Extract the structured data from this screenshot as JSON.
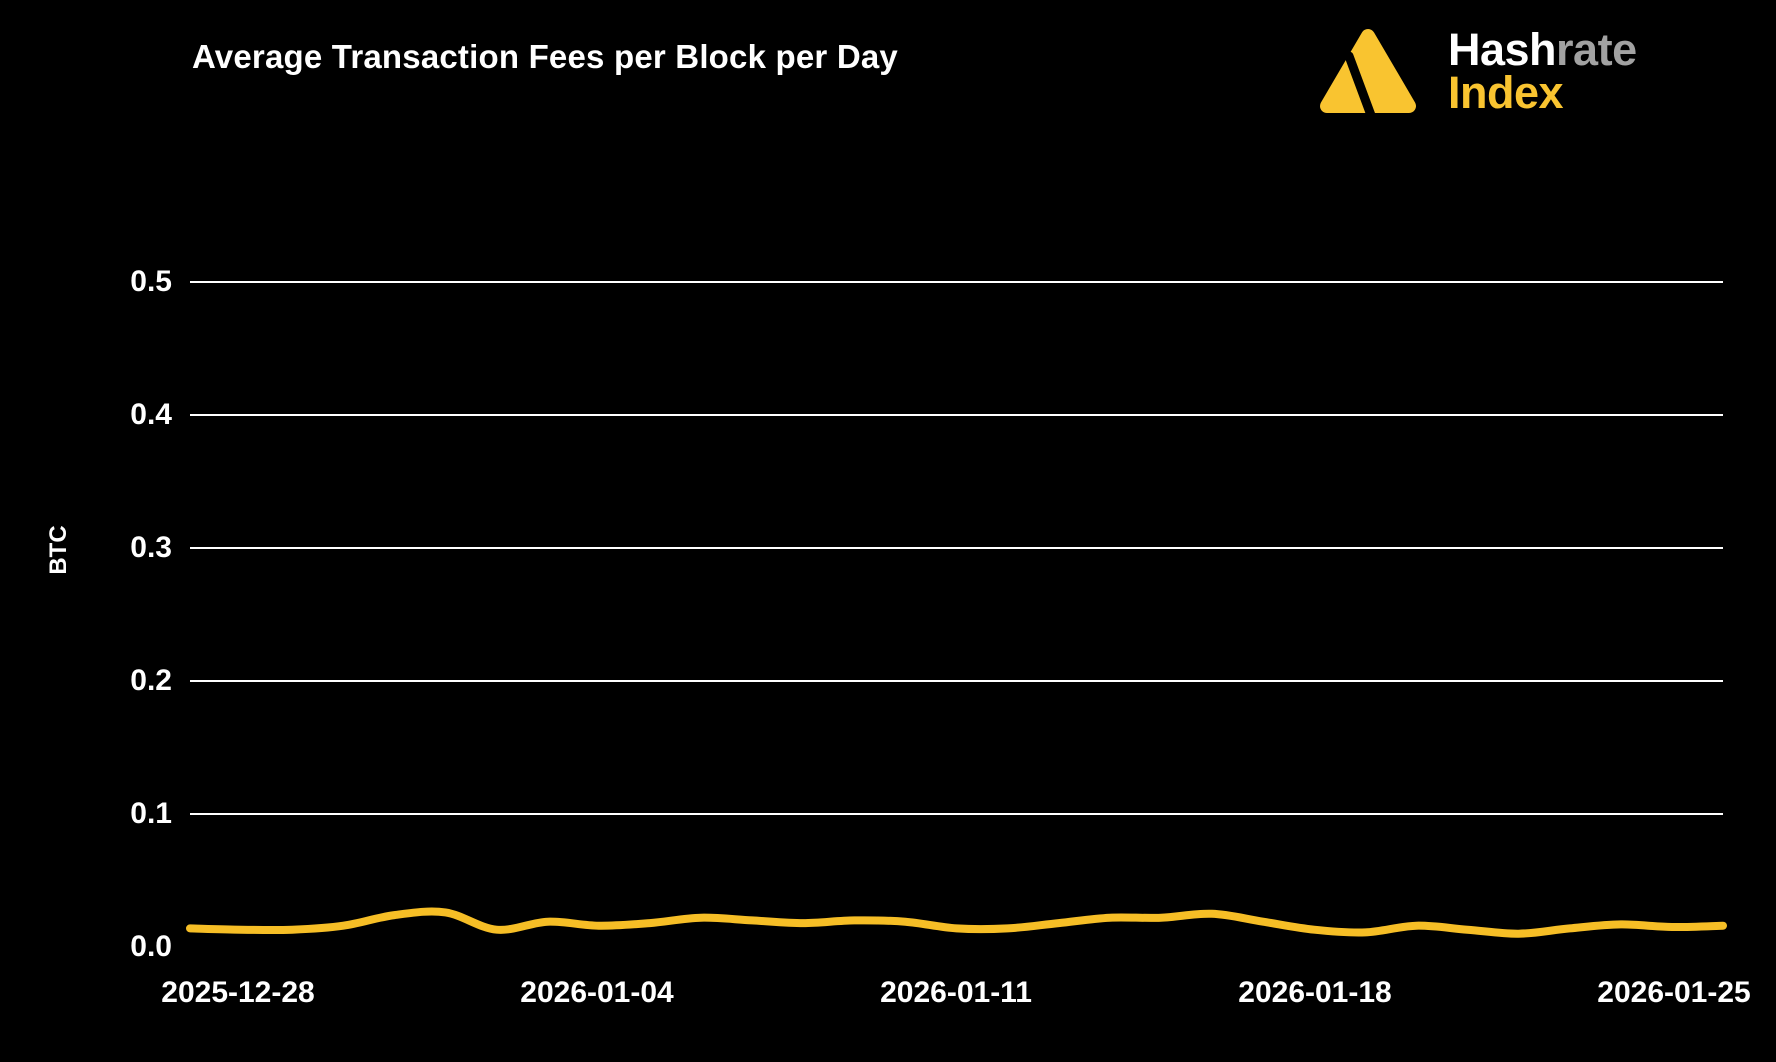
{
  "header": {
    "title": "Average Transaction Fees per Block per Day"
  },
  "logo": {
    "icon": "hashrate-index-triangle",
    "word_top_a": "Hash",
    "word_top_b": "rate",
    "word_bottom": "Index",
    "brand_yellow": "#f9c430",
    "brand_gray": "#a2a2a2",
    "brand_white": "#ffffff"
  },
  "chart_data": {
    "type": "line",
    "title": "Average Transaction Fees per Block per Day",
    "xlabel": "",
    "ylabel": "BTC",
    "ylim": [
      0,
      0.55
    ],
    "grid": true,
    "legend_position": "none",
    "background_color": "#000000",
    "gridline_color": "#ffffff",
    "line_color": "#f6be26",
    "line_width": 8,
    "yticks": [
      "0.5",
      "0.4",
      "0.3",
      "0.2",
      "0.1",
      "0.0"
    ],
    "xticks": [
      "2025-12-28",
      "2026-01-04",
      "2026-01-11",
      "2026-01-18",
      "2026-01-25"
    ],
    "x": [
      "2025-12-27",
      "2025-12-28",
      "2025-12-29",
      "2025-12-30",
      "2025-12-31",
      "2026-01-01",
      "2026-01-02",
      "2026-01-03",
      "2026-01-04",
      "2026-01-05",
      "2026-01-06",
      "2026-01-07",
      "2026-01-08",
      "2026-01-09",
      "2026-01-10",
      "2026-01-11",
      "2026-01-12",
      "2026-01-13",
      "2026-01-14",
      "2026-01-15",
      "2026-01-16",
      "2026-01-17",
      "2026-01-18",
      "2026-01-19",
      "2026-01-20",
      "2026-01-21",
      "2026-01-22",
      "2026-01-23",
      "2026-01-24",
      "2026-01-25",
      "2026-01-26"
    ],
    "values": [
      0.014,
      0.013,
      0.013,
      0.016,
      0.024,
      0.026,
      0.013,
      0.019,
      0.016,
      0.018,
      0.022,
      0.02,
      0.018,
      0.02,
      0.019,
      0.014,
      0.014,
      0.018,
      0.022,
      0.022,
      0.025,
      0.019,
      0.013,
      0.011,
      0.016,
      0.013,
      0.01,
      0.014,
      0.017,
      0.015,
      0.016
    ],
    "series": [
      {
        "name": "Average transaction fees per block",
        "unit": "BTC"
      }
    ]
  }
}
